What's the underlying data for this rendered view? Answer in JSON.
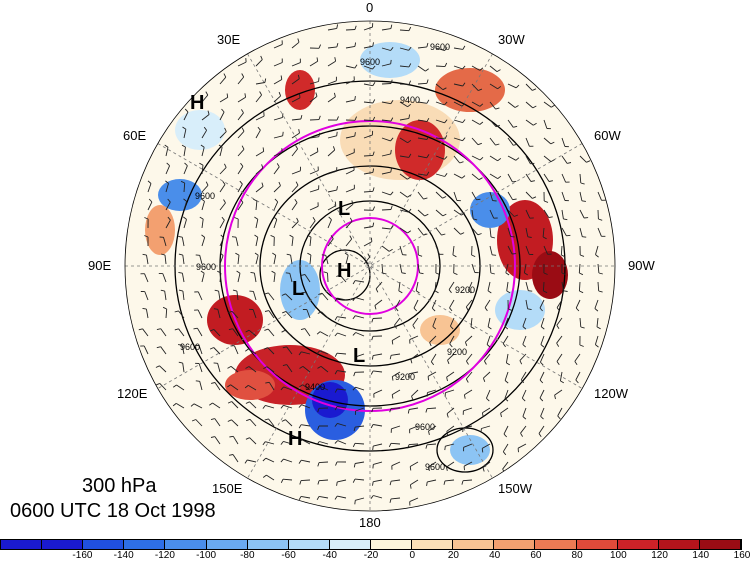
{
  "map": {
    "level": "300 hPa",
    "valid_time": "0600 UTC 18 Oct 1998",
    "longitude_labels": [
      "0",
      "30W",
      "60W",
      "90W",
      "120W",
      "150W",
      "180",
      "150E",
      "120E",
      "90E",
      "60E",
      "30E"
    ],
    "centers": [
      {
        "label": "H"
      },
      {
        "label": "H"
      },
      {
        "label": "H"
      },
      {
        "label": "L"
      },
      {
        "label": "L"
      },
      {
        "label": "L"
      }
    ],
    "contour_labels": [
      "9600",
      "9600",
      "9400",
      "9200",
      "9200",
      "9600",
      "9600",
      "9600",
      "9200",
      "9600",
      "9400",
      "9600"
    ],
    "ring_color": "#e000e0",
    "contour_color": "#000000"
  },
  "colorbar": {
    "ticks": [
      "-160",
      "-140",
      "-120",
      "-100",
      "-80",
      "-60",
      "-40",
      "-20",
      "0",
      "20",
      "40",
      "60",
      "80",
      "100",
      "120",
      "140",
      "160"
    ],
    "colors": [
      "#1a1ad0",
      "#2050e0",
      "#2e6fe6",
      "#4a8eea",
      "#6aaaf0",
      "#8cc4f4",
      "#b4dcf8",
      "#d8eefa",
      "#fdf6dc",
      "#fbe0b8",
      "#f8c494",
      "#f3a070",
      "#ec7a54",
      "#e04a3a",
      "#cc2228",
      "#b4141c",
      "#9a0c14"
    ]
  }
}
